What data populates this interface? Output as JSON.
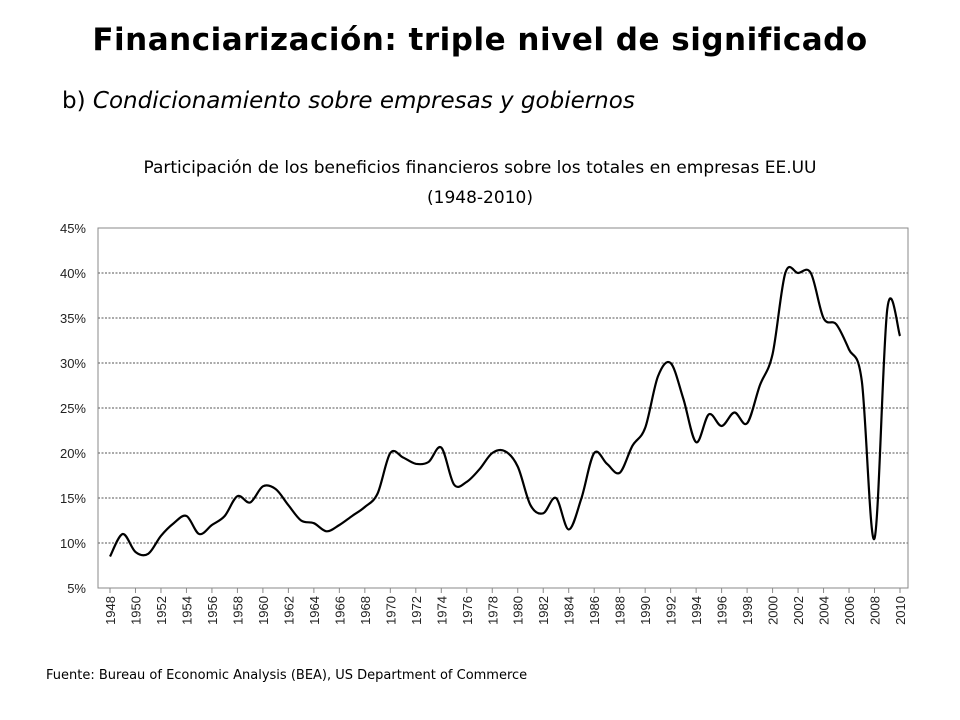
{
  "slide": {
    "title": "Financiarización: triple nivel de significado",
    "subtitle_prefix": "b)",
    "subtitle": "Condicionamiento sobre empresas y gobiernos",
    "source": "Fuente: Bureau of Economic Analysis (BEA), US Department of Commerce"
  },
  "chart_data": {
    "type": "line",
    "title": "Participación de los beneficios financieros sobre los totales en empresas EE.UU",
    "subtitle": "(1948-2010)",
    "xlabel": "",
    "ylabel": "",
    "ylim": [
      5,
      45
    ],
    "xlim": [
      1948,
      2010
    ],
    "grid": true,
    "y_ticks": [
      "5%",
      "10%",
      "15%",
      "20%",
      "25%",
      "30%",
      "35%",
      "40%",
      "45%"
    ],
    "x_ticks": [
      "1948",
      "1950",
      "1952",
      "1954",
      "1956",
      "1958",
      "1960",
      "1962",
      "1964",
      "1966",
      "1968",
      "1970",
      "1972",
      "1974",
      "1976",
      "1978",
      "1980",
      "1982",
      "1984",
      "1986",
      "1988",
      "1990",
      "1992",
      "1994",
      "1996",
      "1998",
      "2000",
      "2002",
      "2004",
      "2006",
      "2008",
      "2010"
    ],
    "series": [
      {
        "name": "",
        "color": "#000000",
        "x": [
          1948,
          1949,
          1950,
          1951,
          1952,
          1953,
          1954,
          1955,
          1956,
          1957,
          1958,
          1959,
          1960,
          1961,
          1962,
          1963,
          1964,
          1965,
          1966,
          1967,
          1968,
          1969,
          1970,
          1971,
          1972,
          1973,
          1974,
          1975,
          1976,
          1977,
          1978,
          1979,
          1980,
          1981,
          1982,
          1983,
          1984,
          1985,
          1986,
          1987,
          1988,
          1989,
          1990,
          1991,
          1992,
          1993,
          1994,
          1995,
          1996,
          1997,
          1998,
          1999,
          2000,
          2001,
          2002,
          2003,
          2004,
          2005,
          2006,
          2007,
          2008,
          2009,
          2010
        ],
        "values": [
          8.5,
          11.0,
          9.0,
          8.8,
          10.8,
          12.2,
          13.0,
          11.0,
          12.0,
          13.0,
          15.2,
          14.5,
          16.3,
          16.0,
          14.2,
          12.5,
          12.2,
          11.3,
          12.0,
          13.0,
          14.0,
          15.5,
          20.0,
          19.5,
          18.8,
          19.0,
          20.6,
          16.5,
          16.8,
          18.2,
          20.0,
          20.2,
          18.5,
          14.2,
          13.3,
          15.0,
          11.5,
          15.0,
          20.0,
          18.8,
          17.8,
          20.8,
          22.8,
          28.5,
          30.0,
          26.0,
          21.2,
          24.3,
          23.0,
          24.5,
          23.3,
          27.5,
          31.0,
          40.0,
          40.0,
          40.0,
          35.0,
          34.3,
          31.5,
          28.0,
          10.5,
          36.0,
          33.0
        ]
      }
    ]
  }
}
